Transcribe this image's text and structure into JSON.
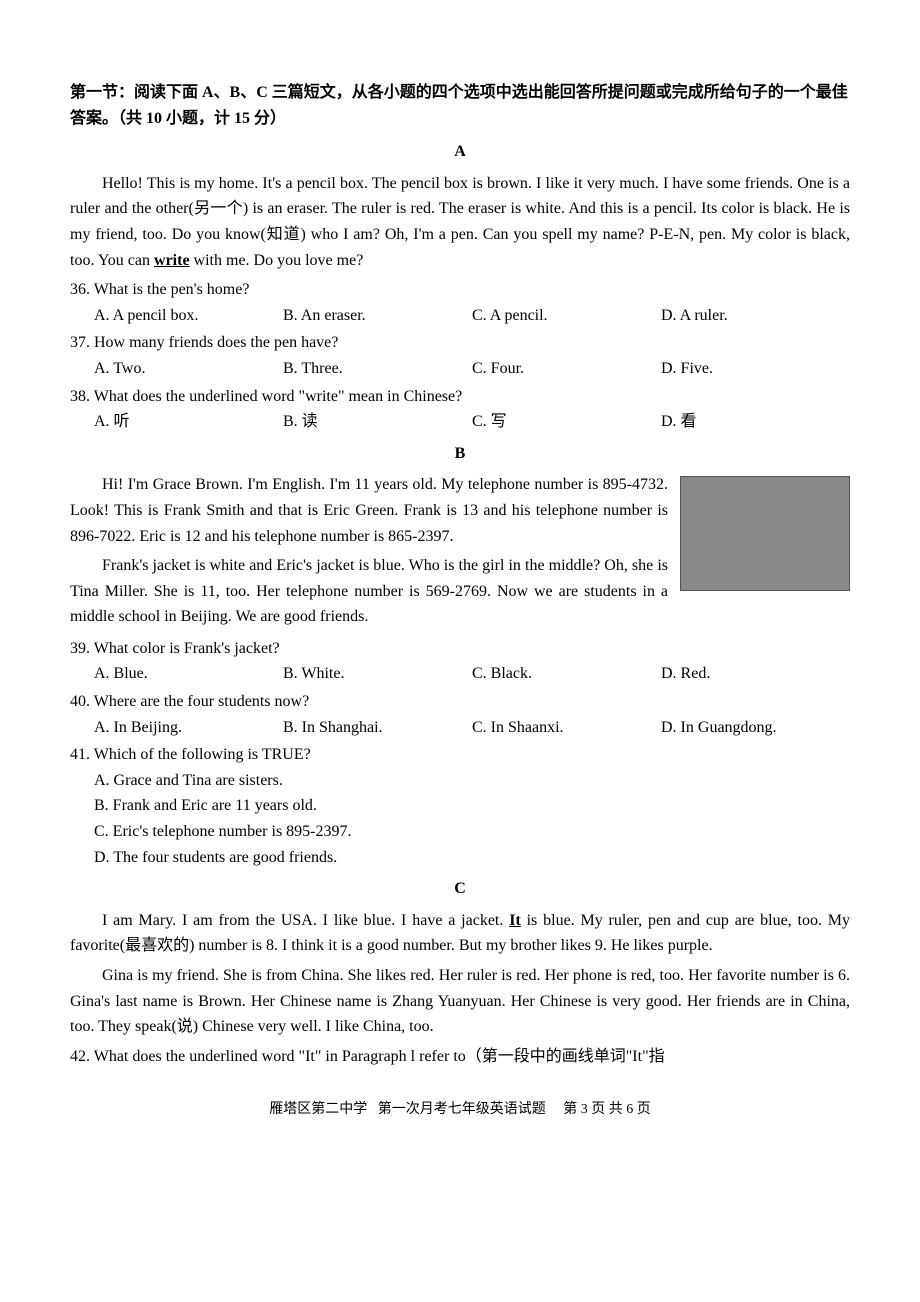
{
  "section_title": "第一节：阅读下面 A、B、C 三篇短文，从各小题的四个选项中选出能回答所提问题或完成所给句子的一个最佳答案。（共 10 小题，计 15 分）",
  "passages": {
    "A": {
      "label": "A",
      "text_pre": "Hello! This is my home. It's a pencil box. The pencil box is brown. I like it very much. I have some friends. One is a ruler and the other(另一个) is an eraser. The ruler is red. The eraser is white. And this is a pencil. Its color is black. He is my friend, too. Do you know(知道) who I am? Oh, I'm a pen. Can you spell my name? P-E-N, pen. My color is black, too. You can ",
      "underlined": "write",
      "text_post": " with me. Do you love me?"
    },
    "B": {
      "label": "B",
      "para1": "Hi! I'm Grace Brown. I'm English. I'm 11 years old. My telephone number is 895-4732. Look! This is Frank Smith and that is Eric Green. Frank is 13 and his telephone number is 896-7022. Eric is 12 and his telephone number is 865-2397.",
      "para2": "Frank's jacket is white and Eric's jacket is blue. Who is the girl in the middle? Oh, she is Tina Miller. She is 11, too. Her telephone number is 569-2769. Now we are students in a middle school in Beijing. We are good friends."
    },
    "C": {
      "label": "C",
      "para1_pre": "I am Mary. I am from the USA. I like blue. I have a jacket. ",
      "para1_under": "It",
      "para1_post": " is blue. My ruler, pen and cup are blue, too. My favorite(最喜欢的) number is 8. I think it is a good number. But my brother likes 9. He likes purple.",
      "para2": "Gina is my friend. She is from China. She likes red. Her ruler is red. Her phone is red, too. Her favorite number is 6. Gina's last name is Brown. Her Chinese name is Zhang Yuanyuan. Her Chinese is very good. Her friends are in China, too. They speak(说) Chinese very well. I like China, too."
    }
  },
  "questions": {
    "q36": {
      "stem": "36. What is the pen's home?",
      "A": "A. A pencil box.",
      "B": "B. An eraser.",
      "C": "C. A pencil.",
      "D": "D. A ruler."
    },
    "q37": {
      "stem": "37. How many friends does the pen have?",
      "A": "A. Two.",
      "B": "B. Three.",
      "C": "C. Four.",
      "D": "D. Five."
    },
    "q38": {
      "stem": "38. What does the underlined word \"write\" mean in Chinese?",
      "A": "A. 听",
      "B": "B. 读",
      "C": "C. 写",
      "D": "D. 看"
    },
    "q39": {
      "stem": "39. What color is Frank's jacket?",
      "A": "A. Blue.",
      "B": "B. White.",
      "C": "C. Black.",
      "D": "D. Red."
    },
    "q40": {
      "stem": "40. Where are the four students now?",
      "A": "A. In Beijing.",
      "B": "B. In Shanghai.",
      "C": "C. In Shaanxi.",
      "D": "D. In Guangdong."
    },
    "q41": {
      "stem": "41. Which of the following is TRUE?",
      "A": "A. Grace and Tina are sisters.",
      "B": "B. Frank and Eric are 11 years old.",
      "C": "C. Eric's telephone number is 895-2397.",
      "D": "D. The four students are good friends."
    },
    "q42": {
      "stem": "42. What does the underlined word \"It\" in Paragraph l refer to（第一段中的画线单词\"It\"指"
    }
  },
  "footer": {
    "school": "雁塔区第二中学",
    "exam": "第一次月考七年级英语试题",
    "page": "第 3 页  共 6 页"
  }
}
